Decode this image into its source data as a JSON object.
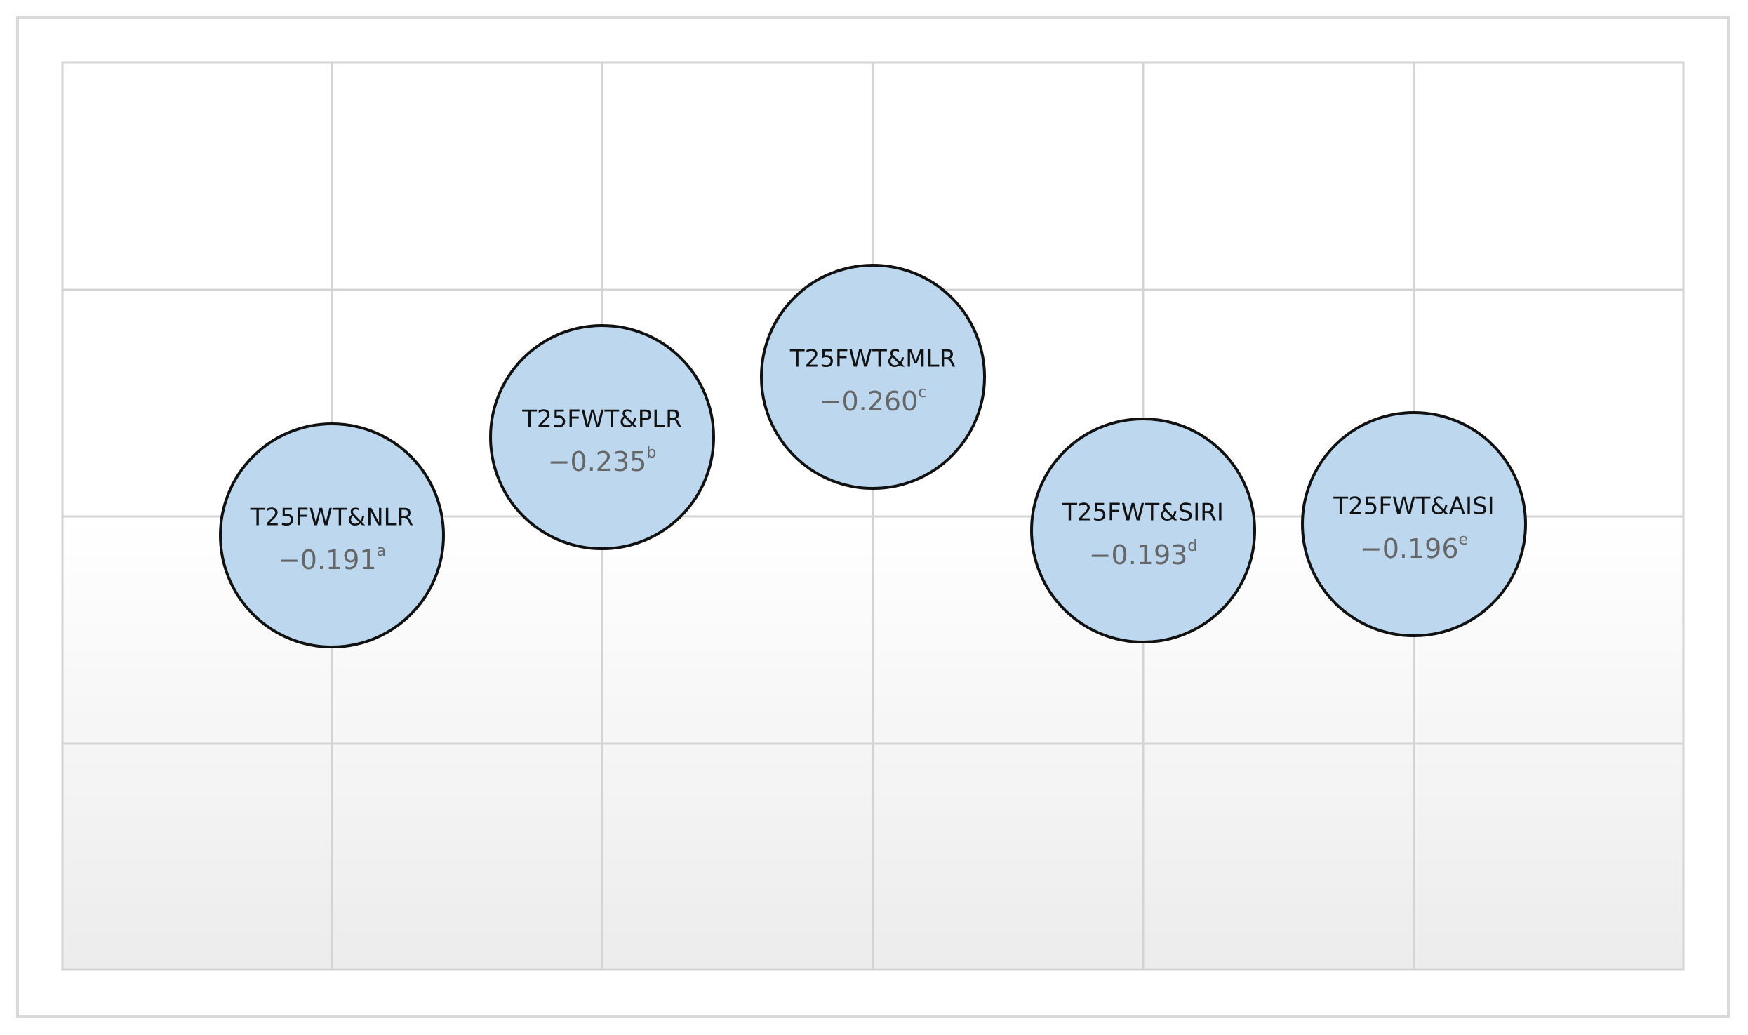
{
  "nodes": [
    {
      "label": "T25FWT&NLR",
      "value": "−0.191",
      "note": "a"
    },
    {
      "label": "T25FWT&PLR",
      "value": "−0.235",
      "note": "b"
    },
    {
      "label": "T25FWT&MLR",
      "value": "−0.260",
      "note": "c"
    },
    {
      "label": "T25FWT&SIRI",
      "value": "−0.193",
      "note": "d"
    },
    {
      "label": "T25FWT&AISI",
      "value": "−0.196",
      "note": "e"
    }
  ]
}
